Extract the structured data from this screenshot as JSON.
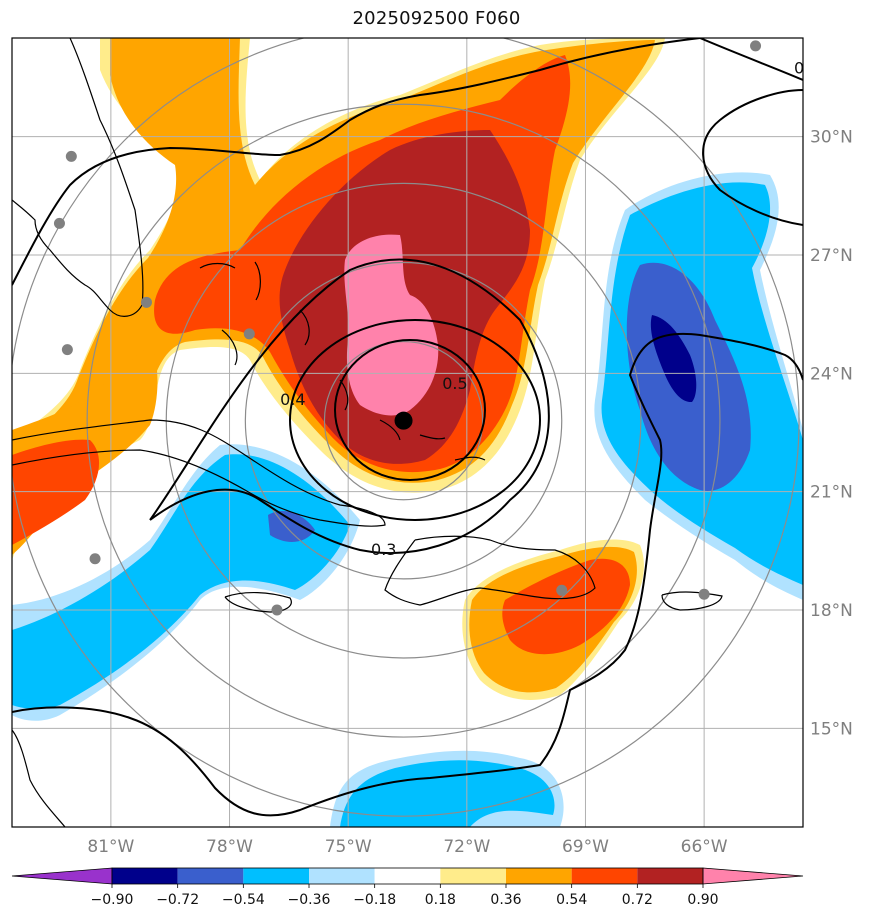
{
  "title": "2025092500 F060",
  "map": {
    "lon_range": [
      -83.5,
      -63.5
    ],
    "lat_range": [
      12.5,
      32.5
    ],
    "x_ticks": [
      {
        "lon": -81,
        "label": "81°W"
      },
      {
        "lon": -78,
        "label": "78°W"
      },
      {
        "lon": -75,
        "label": "75°W"
      },
      {
        "lon": -72,
        "label": "72°W"
      },
      {
        "lon": -69,
        "label": "69°W"
      },
      {
        "lon": -66,
        "label": "66°W"
      }
    ],
    "y_ticks": [
      {
        "lat": 30,
        "label": "30°N"
      },
      {
        "lat": 27,
        "label": "27°N"
      },
      {
        "lat": 24,
        "label": "24°N"
      },
      {
        "lat": 21,
        "label": "21°N"
      },
      {
        "lat": 18,
        "label": "18°N"
      },
      {
        "lat": 15,
        "label": "15°N"
      }
    ],
    "grid": true,
    "storm_center": {
      "lon": -73.6,
      "lat": 22.8
    },
    "range_rings_deg": [
      2,
      4,
      6,
      8,
      10
    ],
    "contour_labels": [
      {
        "text": "0.4",
        "lon": -76.4,
        "lat": 23.2
      },
      {
        "text": "0.5",
        "lon": -72.3,
        "lat": 23.6
      },
      {
        "text": "0.3",
        "lon": -74.1,
        "lat": 19.4
      },
      {
        "text": "0",
        "lon": -63.6,
        "lat": 31.6
      }
    ],
    "stations": [
      {
        "lon": -82.0,
        "lat": 29.5
      },
      {
        "lon": -82.3,
        "lat": 27.8
      },
      {
        "lon": -80.1,
        "lat": 25.8
      },
      {
        "lon": -82.1,
        "lat": 24.6
      },
      {
        "lon": -77.5,
        "lat": 25.0
      },
      {
        "lon": -81.4,
        "lat": 19.3
      },
      {
        "lon": -76.8,
        "lat": 18.0
      },
      {
        "lon": -69.6,
        "lat": 18.5
      },
      {
        "lon": -66.0,
        "lat": 18.4
      },
      {
        "lon": -64.7,
        "lat": 32.3
      }
    ]
  },
  "colorbar": {
    "ticks": [
      "−0.90",
      "−0.72",
      "−0.54",
      "−0.36",
      "−0.18",
      "0.18",
      "0.36",
      "0.54",
      "0.72",
      "0.90"
    ],
    "colors": [
      "#9932CC",
      "#00008B",
      "#3A5FCD",
      "#00BFFF",
      "#B0E2FF",
      "#FFFFFF",
      "#FFEC8B",
      "#FFA500",
      "#FF4500",
      "#B22222",
      "#FF82AB",
      "#FF82AB"
    ]
  }
}
